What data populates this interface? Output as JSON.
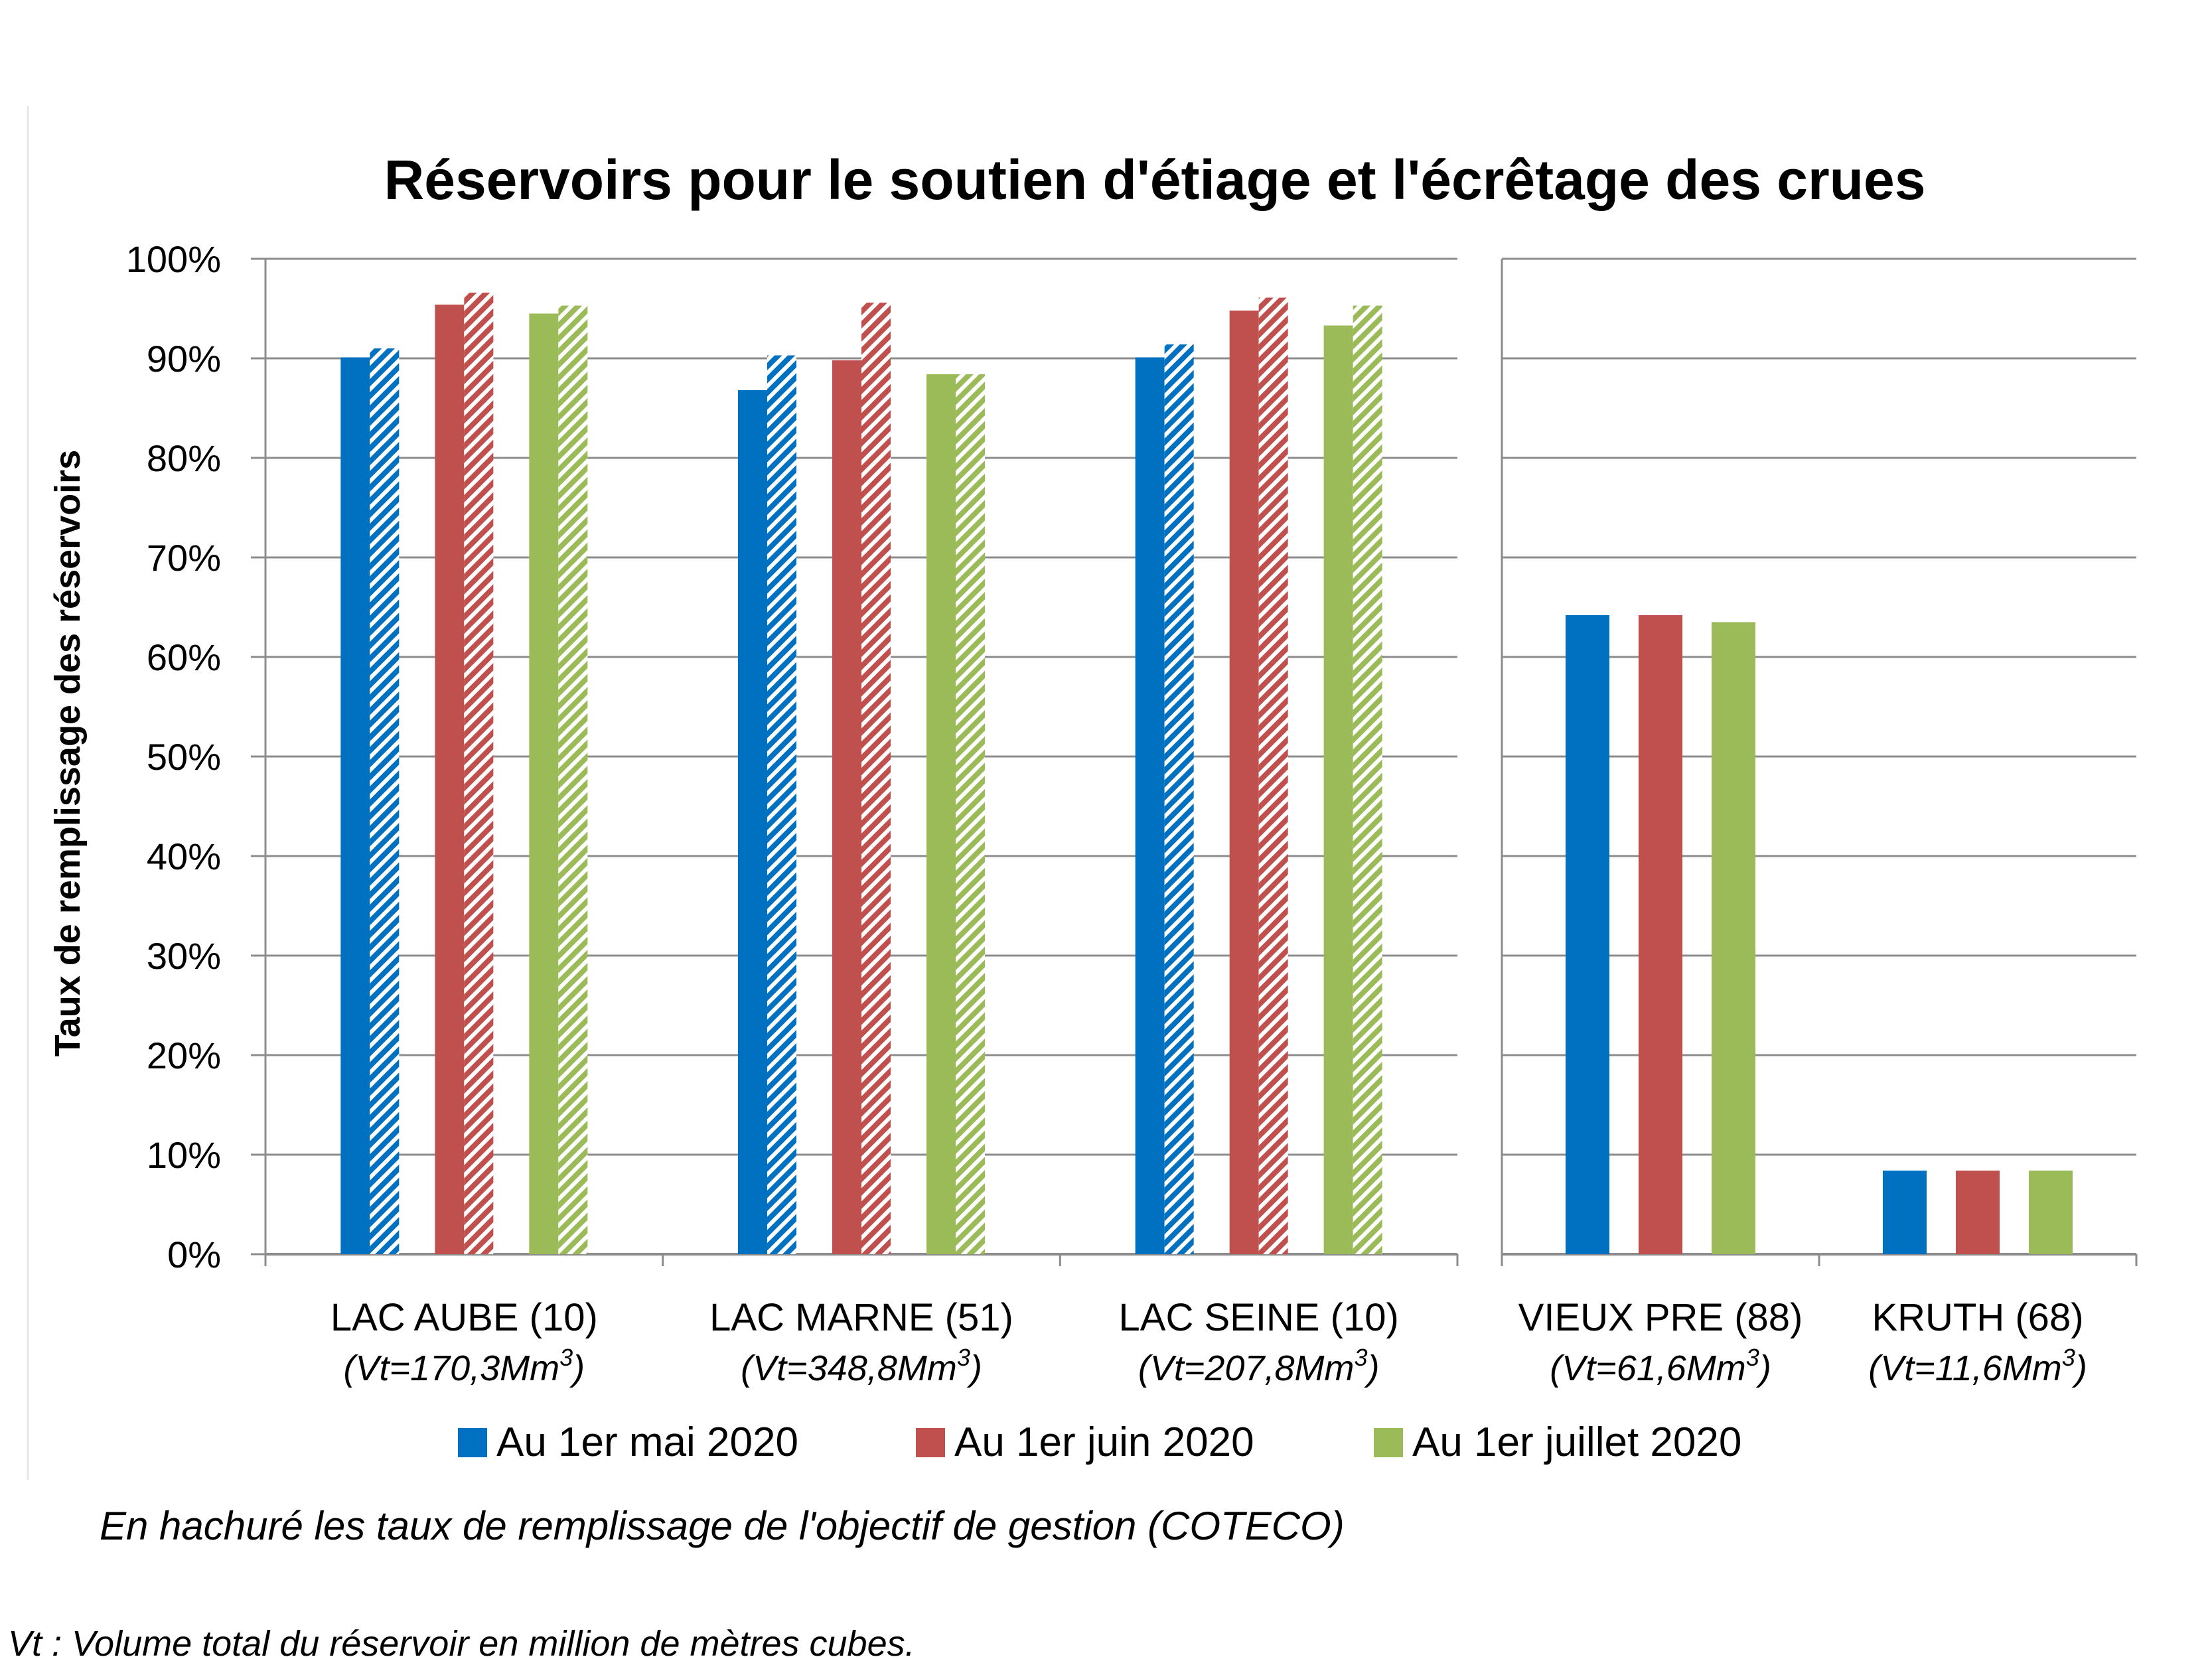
{
  "chart_data": {
    "type": "bar",
    "title": "Réservoirs pour le soutien d'étiage et l'écrêtage des crues",
    "ylabel": "Taux de remplissage des réservoirs",
    "ylim": [
      0,
      100
    ],
    "yticks": [
      "0%",
      "10%",
      "20%",
      "30%",
      "40%",
      "50%",
      "60%",
      "70%",
      "80%",
      "90%",
      "100%"
    ],
    "grid": true,
    "legend_position": "bottom",
    "panels": [
      {
        "categories": [
          {
            "label": "LAC AUBE (10)",
            "sublabel": "(Vt=170,3Mm",
            "sup": "3",
            "close": ")"
          },
          {
            "label": "LAC MARNE (51)",
            "sublabel": "(Vt=348,8Mm",
            "sup": "3",
            "close": ")"
          },
          {
            "label": "LAC SEINE (10)",
            "sublabel": "(Vt=207,8Mm",
            "sup": "3",
            "close": ")"
          }
        ],
        "series": [
          {
            "name": "Au 1er mai 2020",
            "values": [
              90.1,
              86.8,
              90.1
            ],
            "objective": [
              91.0,
              90.3,
              91.4
            ]
          },
          {
            "name": "Au 1er juin 2020",
            "values": [
              95.4,
              89.8,
              94.8
            ],
            "objective": [
              96.6,
              95.6,
              96.1
            ]
          },
          {
            "name": "Au 1er juillet 2020",
            "values": [
              94.5,
              88.4,
              93.3
            ],
            "objective": [
              95.3,
              88.4,
              95.3
            ]
          }
        ]
      },
      {
        "categories": [
          {
            "label": "VIEUX PRE (88)",
            "sublabel": "(Vt=61,6Mm",
            "sup": "3",
            "close": ")"
          },
          {
            "label": "KRUTH (68)",
            "sublabel": "(Vt=11,6Mm",
            "sup": "3",
            "close": ")"
          }
        ],
        "series": [
          {
            "name": "Au 1er mai 2020",
            "values": [
              64.2,
              8.4
            ]
          },
          {
            "name": "Au 1er juin 2020",
            "values": [
              64.2,
              8.4
            ]
          },
          {
            "name": "Au 1er juillet 2020",
            "values": [
              63.5,
              8.4
            ]
          }
        ]
      }
    ],
    "colors": [
      "#0070c0",
      "#c0504d",
      "#9bbb59"
    ],
    "notes": [
      "En hachuré les taux de remplissage de l'objectif de gestion (COTECO)",
      "Vt : Volume total du réservoir en million de mètres cubes."
    ]
  }
}
